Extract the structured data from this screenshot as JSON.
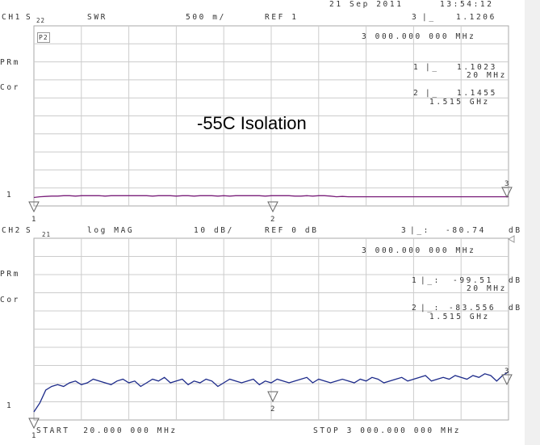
{
  "header": {
    "date": "21 Sep 2011",
    "time": "13:54:12"
  },
  "overlay_title": "-55C Isolation",
  "channel1": {
    "channel": "CH1",
    "param": "S",
    "param_sub": "22",
    "format": "SWR",
    "scale": "500 m/",
    "reference": "REF 1",
    "marker_readout": {
      "id": "3",
      "symbol": "|_",
      "value": "1.1206",
      "frequency": "3 000.000 000 MHz"
    },
    "markers": [
      {
        "id": "1",
        "symbol": "|_",
        "value": "1.1023",
        "frequency": "20 MHz"
      },
      {
        "id": "2",
        "symbol": "|_",
        "value": "1.1455",
        "frequency": "1.515 GHz"
      }
    ],
    "badge": "P2",
    "side_labels": [
      "PRm",
      "Cor"
    ],
    "ref_level_label": "1",
    "trace_color": "#7a1f7a",
    "trace": [
      1.1,
      1.12,
      1.13,
      1.14,
      1.14,
      1.15,
      1.15,
      1.14,
      1.15,
      1.15,
      1.15,
      1.15,
      1.14,
      1.15,
      1.15,
      1.15,
      1.15,
      1.15,
      1.15,
      1.15,
      1.14,
      1.15,
      1.15,
      1.15,
      1.14,
      1.15,
      1.15,
      1.14,
      1.15,
      1.15,
      1.15,
      1.14,
      1.15,
      1.14,
      1.15,
      1.15,
      1.15,
      1.15,
      1.15,
      1.14,
      1.15,
      1.15,
      1.15,
      1.15,
      1.14,
      1.14,
      1.15,
      1.14,
      1.15,
      1.15,
      1.14,
      1.12,
      1.13,
      1.12,
      1.12,
      1.12,
      1.12,
      1.12,
      1.12,
      1.12,
      1.12,
      1.12,
      1.12,
      1.12,
      1.12,
      1.12,
      1.12,
      1.12,
      1.12,
      1.12,
      1.12,
      1.12,
      1.12,
      1.12,
      1.12,
      1.12,
      1.12,
      1.12,
      1.12,
      1.12,
      1.12
    ],
    "marker_flags": [
      "1",
      "2",
      "3"
    ]
  },
  "channel2": {
    "channel": "CH2",
    "param": "S",
    "param_sub": "21",
    "format": "log MAG",
    "scale": "10 dB/",
    "reference": "REF 0 dB",
    "marker_readout": {
      "id": "3",
      "symbol": "|_:",
      "value": "-80.74",
      "unit": "dB",
      "frequency": "3 000.000 000 MHz"
    },
    "markers": [
      {
        "id": "1",
        "symbol": "|_:",
        "value": "-99.51",
        "unit": "dB",
        "frequency": "20 MHz"
      },
      {
        "id": "2",
        "symbol": "|_:",
        "value": "-83.556",
        "unit": "dB",
        "frequency": "1.515 GHz"
      }
    ],
    "side_labels": [
      "PRm",
      "Cor"
    ],
    "ref_level_label": "1",
    "trace_color": "#1c2a8a",
    "trace": [
      -100,
      -95,
      -88,
      -86,
      -85,
      -86,
      -84,
      -83,
      -85,
      -84,
      -82,
      -83,
      -84,
      -85,
      -83,
      -82,
      -84,
      -83,
      -86,
      -84,
      -82,
      -83,
      -81,
      -84,
      -83,
      -82,
      -85,
      -83,
      -84,
      -82,
      -83,
      -86,
      -84,
      -82,
      -83,
      -84,
      -83,
      -82,
      -85,
      -83,
      -84,
      -82,
      -83,
      -84,
      -83,
      -82,
      -81,
      -84,
      -82,
      -83,
      -84,
      -83,
      -82,
      -83,
      -84,
      -82,
      -83,
      -81,
      -82,
      -84,
      -83,
      -82,
      -81,
      -83,
      -82,
      -81,
      -80,
      -83,
      -82,
      -81,
      -82,
      -80,
      -81,
      -82,
      -80,
      -81,
      -79,
      -80,
      -83,
      -80,
      -78
    ],
    "marker_flags": [
      "1",
      "2",
      "3"
    ]
  },
  "footer": {
    "start": "START  20.000 000 MHz",
    "stop": "STOP 3 000.000 000 MHz"
  }
}
